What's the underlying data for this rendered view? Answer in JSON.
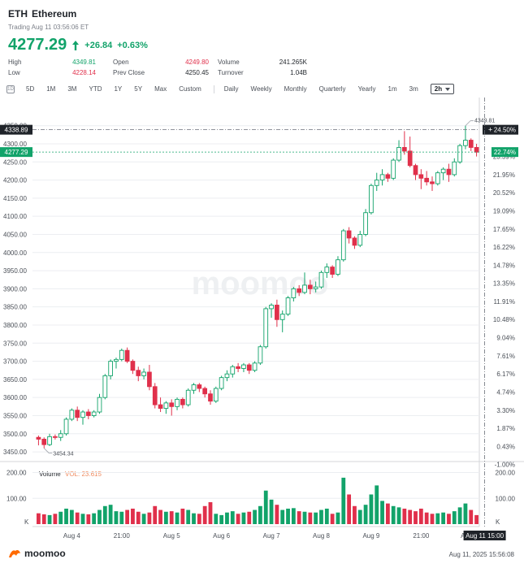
{
  "header": {
    "symbol": "ETH",
    "name": "Ethereum",
    "trading_time": "Trading Aug 11 03:56:06 ET",
    "price": "4277.29",
    "change": "+26.84",
    "change_pct": "+0.63%"
  },
  "stats": {
    "col1": [
      {
        "label": "High",
        "value": "4349.81",
        "tone": "up"
      },
      {
        "label": "Low",
        "value": "4228.14",
        "tone": "down"
      }
    ],
    "col2": [
      {
        "label": "Open",
        "value": "4249.80",
        "tone": "down"
      },
      {
        "label": "Prev Close",
        "value": "4250.45",
        "tone": "neutral"
      }
    ],
    "col3": [
      {
        "label": "Volume",
        "value": "241.265K",
        "tone": "neutral"
      },
      {
        "label": "Turnover",
        "value": "1.04B",
        "tone": "neutral"
      }
    ]
  },
  "toolbar": {
    "ranges": [
      "5D",
      "1M",
      "3M",
      "YTD",
      "1Y",
      "5Y",
      "Max",
      "Custom"
    ],
    "periods": [
      "Daily",
      "Weekly",
      "Monthly",
      "Quarterly",
      "Yearly",
      "1m",
      "3m"
    ],
    "selected_interval": "2h"
  },
  "colors": {
    "up": "#12a36a",
    "down": "#e0304b",
    "grid": "#eceef1",
    "axis_text": "#4a4f57"
  },
  "chart_data": {
    "type": "candlestick",
    "price_axis": {
      "min": 3430,
      "max": 4365,
      "ticks": [
        3450,
        3500,
        3550,
        3600,
        3650,
        3700,
        3750,
        3800,
        3850,
        3900,
        3950,
        4000,
        4050,
        4100,
        4150,
        4200,
        4250,
        4300,
        4350
      ]
    },
    "tick_labels": [
      "3450.00",
      "3500.00",
      "3550.00",
      "3600.00",
      "3650.00",
      "3700.00",
      "3750.00",
      "3800.00",
      "3850.00",
      "3900.00",
      "3950.00",
      "4000.00",
      "4050.00",
      "4100.00",
      "4150.00",
      "4200.00",
      "4250.00",
      "4300.00",
      "4350.00"
    ],
    "pct_labels": [
      "-1.00%",
      "0.43%",
      "1.87%",
      "3.30%",
      "4.74%",
      "6.17%",
      "7.61%",
      "9.04%",
      "10.48%",
      "11.91%",
      "13.35%",
      "14.78%",
      "16.22%",
      "17.65%",
      "19.09%",
      "20.52%",
      "21.95%",
      "23.39%"
    ],
    "pct_values": [
      -1.0,
      0.43,
      1.87,
      3.3,
      4.74,
      6.17,
      7.61,
      9.04,
      10.48,
      11.91,
      13.35,
      14.78,
      16.22,
      17.65,
      19.09,
      20.52,
      21.95,
      23.39
    ],
    "crosshair_price": "4338.89",
    "crosshair_pct": "24.50%",
    "last_price": "4277.29",
    "last_pct": "22.74%",
    "high_marker": "4349.81",
    "low_marker": "3454.34",
    "x_labels": [
      "Aug 4",
      "21:00",
      "Aug 5",
      "Aug 6",
      "Aug 7",
      "Aug 8",
      "Aug 9",
      "21:00",
      "Aug 10"
    ],
    "x_label_index": [
      6,
      15,
      24,
      33,
      42,
      51,
      60,
      69,
      78
    ],
    "crosshair_time": "Aug 11 15:00",
    "volume_label": "Volume",
    "volume_value": "VOL: 23.615",
    "volume_axis": {
      "max": 230,
      "ticks": [
        "200.00",
        "100.00"
      ],
      "tick_values": [
        200,
        100
      ],
      "unit": "K"
    },
    "candles": [
      [
        3490,
        3495,
        3468,
        3485
      ],
      [
        3485,
        3490,
        3460,
        3470
      ],
      [
        3470,
        3500,
        3466,
        3492
      ],
      [
        3492,
        3498,
        3484,
        3490
      ],
      [
        3490,
        3510,
        3480,
        3500
      ],
      [
        3500,
        3545,
        3495,
        3540
      ],
      [
        3540,
        3570,
        3535,
        3565
      ],
      [
        3565,
        3575,
        3535,
        3545
      ],
      [
        3545,
        3565,
        3525,
        3560
      ],
      [
        3560,
        3568,
        3540,
        3550
      ],
      [
        3550,
        3565,
        3545,
        3560
      ],
      [
        3560,
        3610,
        3555,
        3600
      ],
      [
        3600,
        3665,
        3595,
        3660
      ],
      [
        3660,
        3705,
        3650,
        3700
      ],
      [
        3700,
        3710,
        3680,
        3705
      ],
      [
        3705,
        3735,
        3700,
        3730
      ],
      [
        3730,
        3738,
        3695,
        3700
      ],
      [
        3700,
        3705,
        3665,
        3675
      ],
      [
        3675,
        3685,
        3645,
        3660
      ],
      [
        3660,
        3680,
        3650,
        3670
      ],
      [
        3670,
        3690,
        3620,
        3630
      ],
      [
        3630,
        3640,
        3570,
        3580
      ],
      [
        3580,
        3600,
        3560,
        3570
      ],
      [
        3570,
        3590,
        3555,
        3585
      ],
      [
        3585,
        3595,
        3550,
        3575
      ],
      [
        3575,
        3600,
        3565,
        3595
      ],
      [
        3595,
        3600,
        3570,
        3580
      ],
      [
        3580,
        3625,
        3575,
        3620
      ],
      [
        3620,
        3640,
        3610,
        3635
      ],
      [
        3635,
        3640,
        3615,
        3625
      ],
      [
        3625,
        3630,
        3600,
        3610
      ],
      [
        3610,
        3620,
        3580,
        3590
      ],
      [
        3590,
        3630,
        3585,
        3625
      ],
      [
        3625,
        3660,
        3620,
        3655
      ],
      [
        3655,
        3675,
        3645,
        3665
      ],
      [
        3665,
        3690,
        3655,
        3685
      ],
      [
        3685,
        3695,
        3670,
        3680
      ],
      [
        3680,
        3695,
        3670,
        3690
      ],
      [
        3690,
        3695,
        3665,
        3675
      ],
      [
        3675,
        3700,
        3670,
        3695
      ],
      [
        3695,
        3745,
        3690,
        3740
      ],
      [
        3740,
        3850,
        3735,
        3845
      ],
      [
        3845,
        3860,
        3820,
        3855
      ],
      [
        3855,
        3870,
        3795,
        3815
      ],
      [
        3815,
        3840,
        3780,
        3830
      ],
      [
        3830,
        3880,
        3825,
        3875
      ],
      [
        3875,
        3905,
        3865,
        3900
      ],
      [
        3900,
        3910,
        3880,
        3890
      ],
      [
        3890,
        3945,
        3885,
        3910
      ],
      [
        3910,
        3925,
        3885,
        3900
      ],
      [
        3900,
        3920,
        3890,
        3905
      ],
      [
        3905,
        3950,
        3900,
        3945
      ],
      [
        3945,
        3970,
        3930,
        3960
      ],
      [
        3960,
        3965,
        3930,
        3940
      ],
      [
        3940,
        3990,
        3935,
        3980
      ],
      [
        3980,
        4065,
        3975,
        4060
      ],
      [
        4060,
        4070,
        4025,
        4040
      ],
      [
        4040,
        4045,
        4010,
        4020
      ],
      [
        4020,
        4060,
        4015,
        4050
      ],
      [
        4050,
        4120,
        4045,
        4110
      ],
      [
        4110,
        4190,
        4105,
        4185
      ],
      [
        4185,
        4220,
        4170,
        4200
      ],
      [
        4200,
        4230,
        4185,
        4215
      ],
      [
        4215,
        4220,
        4195,
        4205
      ],
      [
        4205,
        4260,
        4200,
        4255
      ],
      [
        4255,
        4310,
        4250,
        4290
      ],
      [
        4290,
        4335,
        4270,
        4280
      ],
      [
        4280,
        4320,
        4235,
        4240
      ],
      [
        4240,
        4245,
        4200,
        4215
      ],
      [
        4215,
        4230,
        4175,
        4205
      ],
      [
        4205,
        4225,
        4185,
        4195
      ],
      [
        4195,
        4210,
        4170,
        4190
      ],
      [
        4190,
        4225,
        4185,
        4220
      ],
      [
        4220,
        4235,
        4200,
        4230
      ],
      [
        4230,
        4245,
        4195,
        4215
      ],
      [
        4215,
        4260,
        4210,
        4250
      ],
      [
        4250,
        4300,
        4245,
        4295
      ],
      [
        4295,
        4350,
        4285,
        4310
      ],
      [
        4310,
        4315,
        4280,
        4290
      ],
      [
        4290,
        4300,
        4265,
        4277
      ]
    ],
    "volumes": [
      42,
      38,
      35,
      40,
      48,
      60,
      55,
      45,
      40,
      38,
      42,
      55,
      70,
      75,
      50,
      48,
      55,
      60,
      48,
      40,
      45,
      70,
      55,
      48,
      50,
      45,
      60,
      55,
      42,
      40,
      70,
      85,
      40,
      35,
      45,
      50,
      40,
      45,
      48,
      55,
      70,
      130,
      95,
      75,
      55,
      60,
      62,
      50,
      48,
      45,
      45,
      55,
      60,
      40,
      45,
      180,
      115,
      70,
      55,
      75,
      115,
      150,
      90,
      80,
      70,
      65,
      60,
      55,
      50,
      60,
      45,
      40,
      42,
      45,
      40,
      50,
      65,
      80,
      55,
      35
    ]
  }
}
